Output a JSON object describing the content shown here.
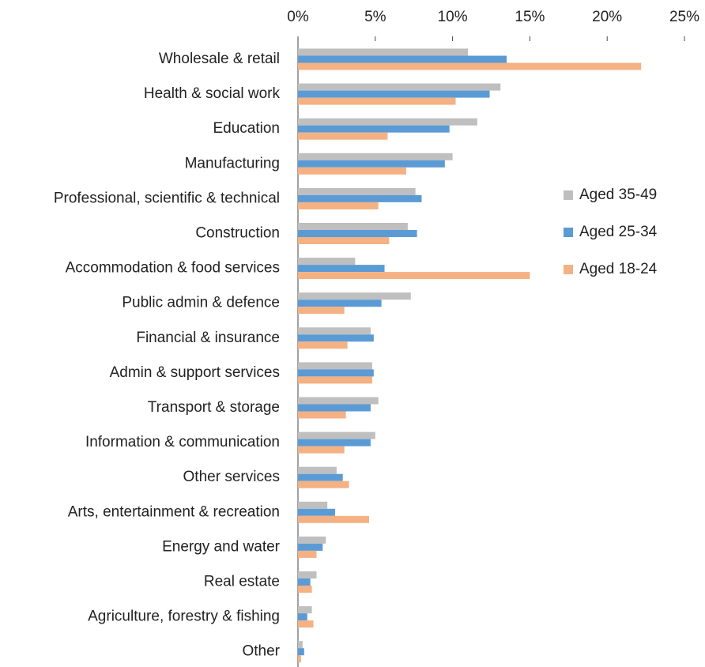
{
  "chart_data": {
    "type": "hbar",
    "categories": [
      "Wholesale & retail",
      "Health & social work",
      "Education",
      "Manufacturing",
      "Professional, scientific & technical",
      "Construction",
      "Accommodation & food services",
      "Public admin & defence",
      "Financial & insurance",
      "Admin & support services",
      "Transport & storage",
      "Information & communication",
      "Other services",
      "Arts, entertainment & recreation",
      "Energy and water",
      "Real estate",
      "Agriculture, forestry & fishing",
      "Other"
    ],
    "series": [
      {
        "name": "Aged 35-49",
        "color": "#bfbfbf",
        "values": [
          11.0,
          13.1,
          11.6,
          10.0,
          7.6,
          7.1,
          3.7,
          7.3,
          4.7,
          4.8,
          5.2,
          5.0,
          2.5,
          1.9,
          1.8,
          1.2,
          0.9,
          0.3
        ]
      },
      {
        "name": "Aged 25-34",
        "color": "#5b9bd5",
        "values": [
          13.5,
          12.4,
          9.8,
          9.5,
          8.0,
          7.7,
          5.6,
          5.4,
          4.9,
          4.9,
          4.7,
          4.7,
          2.9,
          2.4,
          1.6,
          0.8,
          0.6,
          0.4
        ]
      },
      {
        "name": "Aged 18-24",
        "color": "#f4b183",
        "values": [
          22.2,
          10.2,
          5.8,
          7.0,
          5.2,
          5.9,
          15.0,
          3.0,
          3.2,
          4.8,
          3.1,
          3.0,
          3.3,
          4.6,
          1.2,
          0.9,
          1.0,
          0.2
        ]
      }
    ],
    "xlim": [
      0,
      25
    ],
    "xticks": [
      {
        "value": 0,
        "label": "0%"
      },
      {
        "value": 5,
        "label": "5%"
      },
      {
        "value": 10,
        "label": "10%"
      },
      {
        "value": 15,
        "label": "15%"
      },
      {
        "value": 20,
        "label": "20%"
      },
      {
        "value": 25,
        "label": "25%"
      }
    ],
    "legend": "right"
  }
}
